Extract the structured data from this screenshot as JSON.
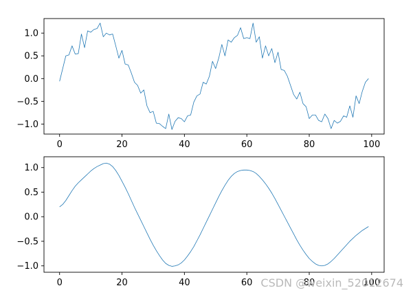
{
  "chart_data": [
    {
      "type": "line",
      "title": "",
      "xlabel": "",
      "ylabel": "",
      "xlim": [
        -5,
        104
      ],
      "ylim": [
        -1.22,
        1.32
      ],
      "xticks": [
        0,
        20,
        40,
        60,
        80,
        100
      ],
      "xtick_labels": [
        "0",
        "20",
        "40",
        "60",
        "80",
        "100"
      ],
      "yticks": [
        -1.0,
        -0.5,
        0.0,
        0.5,
        1.0
      ],
      "ytick_labels": [
        "−1.0",
        "−0.5",
        "0.0",
        "0.5",
        "1.0"
      ],
      "grid": false,
      "legend": "none",
      "series": [
        {
          "color": "#1f77b4",
          "x": [
            0,
            1,
            2,
            3,
            4,
            5,
            6,
            7,
            8,
            9,
            10,
            11,
            12,
            13,
            14,
            15,
            16,
            17,
            18,
            19,
            20,
            21,
            22,
            23,
            24,
            25,
            26,
            27,
            28,
            29,
            30,
            31,
            32,
            33,
            34,
            35,
            36,
            37,
            38,
            39,
            40,
            41,
            42,
            43,
            44,
            45,
            46,
            47,
            48,
            49,
            50,
            51,
            52,
            53,
            54,
            55,
            56,
            57,
            58,
            59,
            60,
            61,
            62,
            63,
            64,
            65,
            66,
            67,
            68,
            69,
            70,
            71,
            72,
            73,
            74,
            75,
            76,
            77,
            78,
            79,
            80,
            81,
            82,
            83,
            84,
            85,
            86,
            87,
            88,
            89,
            90,
            91,
            92,
            93,
            94,
            95,
            96,
            97,
            98,
            99
          ],
          "values": [
            -0.06,
            0.22,
            0.5,
            0.52,
            0.72,
            0.54,
            0.55,
            0.98,
            0.68,
            1.05,
            1.02,
            1.08,
            1.1,
            1.22,
            0.92,
            1.0,
            0.96,
            0.98,
            0.72,
            0.45,
            0.62,
            0.32,
            0.3,
            0.12,
            -0.08,
            -0.15,
            -0.32,
            -0.25,
            -0.6,
            -0.75,
            -0.72,
            -0.98,
            -0.99,
            -1.05,
            -1.1,
            -0.78,
            -1.12,
            -0.94,
            -0.86,
            -0.88,
            -0.95,
            -0.82,
            -0.8,
            -0.52,
            -0.38,
            -0.34,
            -0.08,
            -0.12,
            0.05,
            0.38,
            0.22,
            0.45,
            0.75,
            0.5,
            0.85,
            0.8,
            0.9,
            0.95,
            1.12,
            0.88,
            0.9,
            0.88,
            1.22,
            0.8,
            0.92,
            0.45,
            0.72,
            0.5,
            0.66,
            0.35,
            0.58,
            0.2,
            0.18,
            0.05,
            -0.15,
            -0.35,
            -0.45,
            -0.3,
            -0.55,
            -0.62,
            -0.88,
            -0.8,
            -0.8,
            -0.92,
            -0.95,
            -0.78,
            -0.88,
            -1.1,
            -0.92,
            -0.98,
            -0.94,
            -0.82,
            -0.85,
            -0.6,
            -0.85,
            -0.38,
            -0.55,
            -0.28,
            -0.08,
            0.0
          ]
        }
      ]
    },
    {
      "type": "line",
      "title": "",
      "xlabel": "",
      "ylabel": "",
      "xlim": [
        -5,
        104
      ],
      "ylim": [
        -1.13,
        1.22
      ],
      "xticks": [
        0,
        20,
        40,
        60,
        80,
        100
      ],
      "xtick_labels": [
        "0",
        "20",
        "40",
        "60",
        "80",
        "100"
      ],
      "yticks": [
        -1.0,
        -0.5,
        0.0,
        0.5,
        1.0
      ],
      "ytick_labels": [
        "−1.0",
        "−0.5",
        "0.0",
        "0.5",
        "1.0"
      ],
      "grid": false,
      "legend": "none",
      "series": [
        {
          "color": "#1f77b4",
          "x": [
            0,
            1,
            2,
            3,
            4,
            5,
            6,
            7,
            8,
            9,
            10,
            11,
            12,
            13,
            14,
            15,
            16,
            17,
            18,
            19,
            20,
            21,
            22,
            23,
            24,
            25,
            26,
            27,
            28,
            29,
            30,
            31,
            32,
            33,
            34,
            35,
            36,
            37,
            38,
            39,
            40,
            41,
            42,
            43,
            44,
            45,
            46,
            47,
            48,
            49,
            50,
            51,
            52,
            53,
            54,
            55,
            56,
            57,
            58,
            59,
            60,
            61,
            62,
            63,
            64,
            65,
            66,
            67,
            68,
            69,
            70,
            71,
            72,
            73,
            74,
            75,
            76,
            77,
            78,
            79,
            80,
            81,
            82,
            83,
            84,
            85,
            86,
            87,
            88,
            89,
            90,
            91,
            92,
            93,
            94,
            95,
            96,
            97,
            98,
            99
          ],
          "values": [
            0.2,
            0.25,
            0.33,
            0.43,
            0.53,
            0.62,
            0.69,
            0.75,
            0.81,
            0.87,
            0.93,
            0.98,
            1.02,
            1.05,
            1.08,
            1.09,
            1.07,
            1.02,
            0.94,
            0.84,
            0.72,
            0.6,
            0.47,
            0.33,
            0.19,
            0.06,
            -0.07,
            -0.2,
            -0.33,
            -0.46,
            -0.58,
            -0.69,
            -0.79,
            -0.88,
            -0.95,
            -0.99,
            -1.01,
            -1.0,
            -0.98,
            -0.94,
            -0.88,
            -0.8,
            -0.71,
            -0.61,
            -0.49,
            -0.37,
            -0.24,
            -0.11,
            0.02,
            0.15,
            0.28,
            0.41,
            0.53,
            0.64,
            0.74,
            0.82,
            0.88,
            0.92,
            0.94,
            0.95,
            0.95,
            0.94,
            0.92,
            0.88,
            0.82,
            0.75,
            0.67,
            0.58,
            0.48,
            0.37,
            0.25,
            0.13,
            0.01,
            -0.11,
            -0.23,
            -0.35,
            -0.47,
            -0.58,
            -0.68,
            -0.77,
            -0.85,
            -0.91,
            -0.96,
            -0.99,
            -1.0,
            -0.99,
            -0.96,
            -0.91,
            -0.85,
            -0.78,
            -0.71,
            -0.64,
            -0.57,
            -0.5,
            -0.44,
            -0.38,
            -0.33,
            -0.28,
            -0.24,
            -0.2
          ]
        }
      ]
    }
  ],
  "watermark": "CSDN @weixin_52012674"
}
